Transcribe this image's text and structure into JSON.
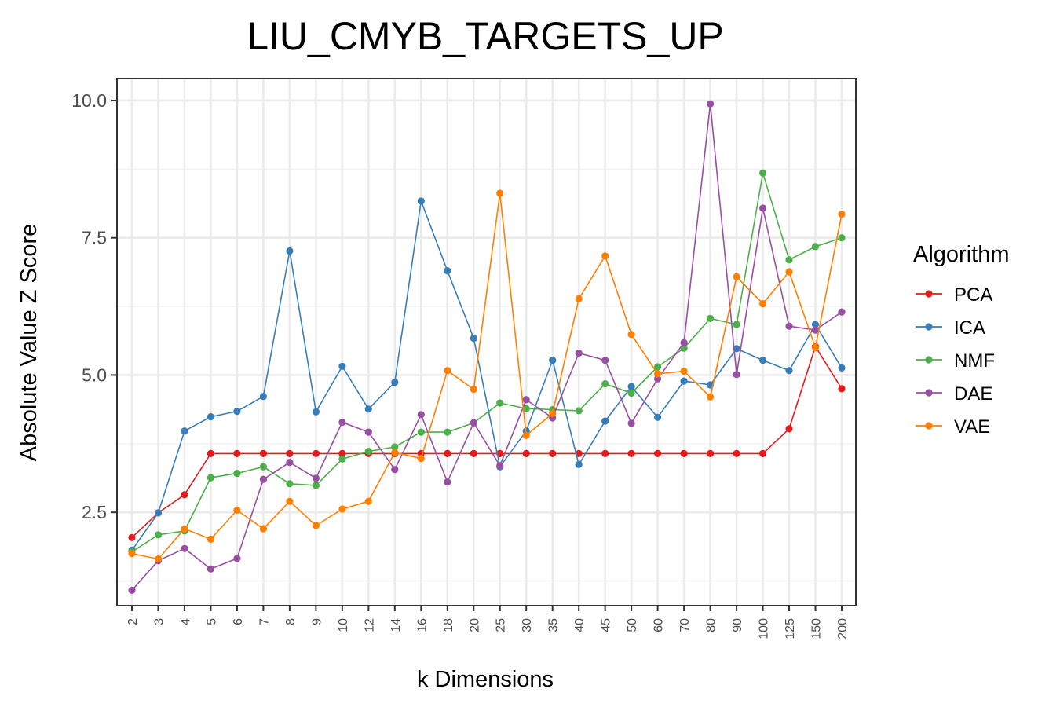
{
  "chart_data": {
    "type": "line",
    "title": "LIU_CMYB_TARGETS_UP",
    "xlabel": "k Dimensions",
    "ylabel": "Absolute Value Z Score",
    "categories": [
      "2",
      "3",
      "4",
      "5",
      "6",
      "7",
      "8",
      "9",
      "10",
      "12",
      "14",
      "16",
      "18",
      "20",
      "25",
      "30",
      "35",
      "40",
      "45",
      "50",
      "60",
      "70",
      "80",
      "90",
      "100",
      "125",
      "150",
      "200"
    ],
    "ylim": [
      0.8,
      10.4
    ],
    "yticks": [
      2.5,
      5.0,
      7.5,
      10.0
    ],
    "ytick_labels": [
      "2.5",
      "5.0",
      "7.5",
      "10.0"
    ],
    "grid": true,
    "legend": {
      "title": "Algorithm",
      "position": "right"
    },
    "series": [
      {
        "name": "PCA",
        "color": "#e41a1c",
        "values": [
          2.04,
          2.49,
          2.82,
          3.57,
          3.57,
          3.57,
          3.57,
          3.57,
          3.57,
          3.57,
          3.57,
          3.57,
          3.57,
          3.57,
          3.57,
          3.57,
          3.57,
          3.57,
          3.57,
          3.57,
          3.57,
          3.57,
          3.57,
          3.57,
          3.57,
          4.02,
          5.52,
          4.75
        ]
      },
      {
        "name": "ICA",
        "color": "#377eb8",
        "values": [
          1.81,
          2.49,
          3.98,
          4.24,
          4.34,
          4.61,
          7.26,
          4.33,
          5.16,
          4.38,
          4.87,
          8.17,
          6.9,
          5.67,
          3.33,
          3.98,
          5.27,
          3.37,
          4.16,
          4.79,
          4.23,
          4.89,
          4.82,
          5.48,
          5.27,
          5.08,
          5.92,
          5.13
        ]
      },
      {
        "name": "NMF",
        "color": "#4daf4a",
        "values": [
          1.78,
          2.09,
          2.16,
          3.13,
          3.21,
          3.33,
          3.02,
          2.99,
          3.47,
          3.61,
          3.69,
          3.96,
          3.96,
          4.13,
          4.49,
          4.39,
          4.37,
          4.35,
          4.84,
          4.67,
          5.15,
          5.49,
          6.03,
          5.92,
          8.68,
          7.1,
          7.34,
          7.5
        ]
      },
      {
        "name": "DAE",
        "color": "#984ea3",
        "values": [
          1.08,
          1.62,
          1.84,
          1.47,
          1.66,
          3.1,
          3.41,
          3.12,
          4.14,
          3.96,
          3.28,
          4.28,
          3.05,
          4.13,
          3.35,
          4.55,
          4.22,
          5.4,
          5.27,
          4.12,
          4.93,
          5.59,
          9.94,
          5.01,
          8.04,
          5.89,
          5.82,
          6.15
        ]
      },
      {
        "name": "VAE",
        "color": "#ff7f00",
        "values": [
          1.75,
          1.65,
          2.2,
          2.01,
          2.54,
          2.2,
          2.7,
          2.26,
          2.56,
          2.7,
          3.59,
          3.48,
          5.08,
          4.74,
          8.31,
          3.9,
          4.3,
          6.39,
          7.17,
          5.74,
          5.02,
          5.07,
          4.6,
          6.79,
          6.3,
          6.88,
          5.5,
          7.93
        ]
      }
    ]
  }
}
